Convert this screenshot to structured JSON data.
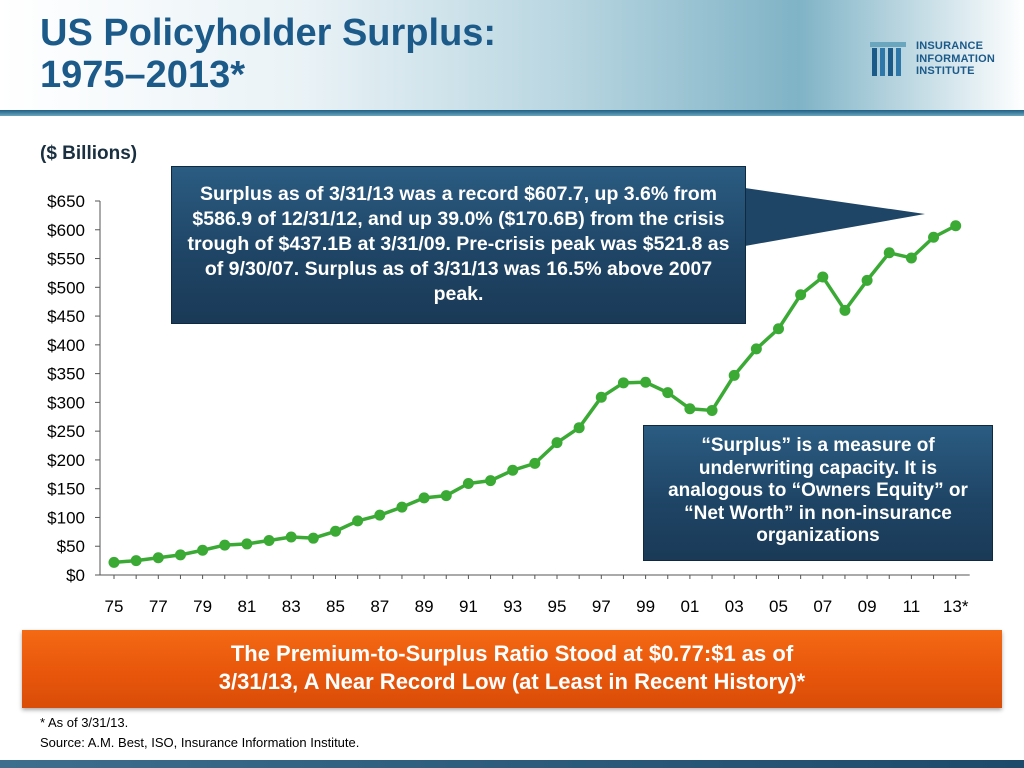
{
  "slide": {
    "title_line1": "US Policyholder Surplus:",
    "title_line2": "1975–2013*",
    "units": "($ Billions)"
  },
  "logo": {
    "line1": "INSURANCE",
    "line2": "INFORMATION",
    "line3": "INSTITUTE"
  },
  "callouts": {
    "record": "Surplus as of 3/31/13 was a record $607.7, up 3.6% from $586.9 of 12/31/12, and up 39.0% ($170.6B) from the crisis trough of $437.1B at 3/31/09. Pre-crisis peak was $521.8 as of 9/30/07. Surplus as of 3/31/13 was 16.5% above 2007 peak.",
    "definition": "“Surplus” is a measure of underwriting capacity.  It is analogous to “Owners Equity” or “Net Worth” in non-insurance organizations"
  },
  "banner": {
    "line1": "The Premium-to-Surplus Ratio Stood at $0.77:$1 as of",
    "line2": "3/31/13, A Near Record Low (at Least in Recent History)*"
  },
  "footnote": {
    "note": "* As of 3/31/13.",
    "source": "Source: A.M. Best, ISO, Insurance Information Institute."
  },
  "colors": {
    "title": "#1c5a8a",
    "line": "#3aaa35",
    "callout": "#1f4566",
    "banner": "#e8560b"
  },
  "chart_data": {
    "type": "line",
    "x": [
      "75",
      "76",
      "77",
      "78",
      "79",
      "80",
      "81",
      "82",
      "83",
      "84",
      "85",
      "86",
      "87",
      "88",
      "89",
      "90",
      "91",
      "92",
      "93",
      "94",
      "95",
      "96",
      "97",
      "98",
      "99",
      "00",
      "01",
      "02",
      "03",
      "04",
      "05",
      "06",
      "07",
      "08",
      "09",
      "10",
      "11",
      "12",
      "13*"
    ],
    "x_tick_labels": [
      "75",
      "77",
      "79",
      "81",
      "83",
      "85",
      "87",
      "89",
      "91",
      "93",
      "95",
      "97",
      "99",
      "01",
      "03",
      "05",
      "07",
      "09",
      "11",
      "13*"
    ],
    "series": [
      {
        "values": [
          22,
          25,
          30,
          35,
          43,
          52,
          54,
          60,
          66,
          64,
          76,
          94,
          104,
          118,
          134,
          138,
          159,
          164,
          182,
          194,
          230,
          256,
          309,
          334,
          335,
          317,
          289,
          286,
          347,
          393,
          428,
          487,
          518,
          460,
          512,
          560,
          551,
          587,
          607
        ]
      }
    ],
    "y_tick_labels": [
      "$0",
      "$50",
      "$100",
      "$150",
      "$200",
      "$250",
      "$300",
      "$350",
      "$400",
      "$450",
      "$500",
      "$550",
      "$600",
      "$650"
    ],
    "ylim": [
      0,
      650
    ],
    "grid": false
  }
}
